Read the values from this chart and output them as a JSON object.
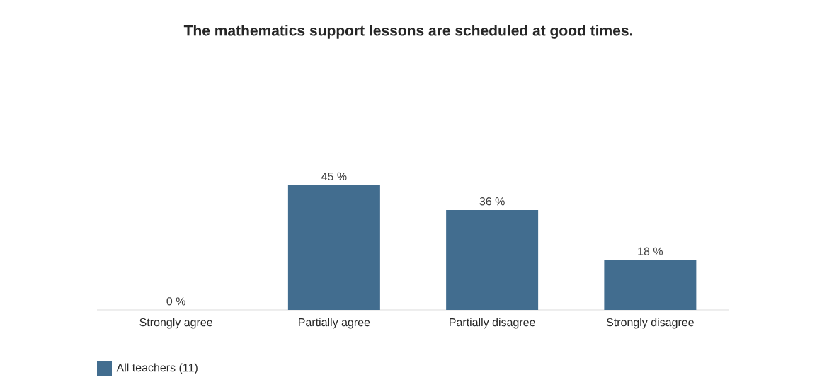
{
  "chart_data": {
    "type": "bar",
    "title": "The mathematics support lessons are scheduled at good times.",
    "categories": [
      "Strongly agree",
      "Partially agree",
      "Partially disagree",
      "Strongly disagree"
    ],
    "series": [
      {
        "name": "All teachers (11)",
        "color": "#426d8f",
        "values": [
          0,
          45,
          36,
          18
        ],
        "value_labels": [
          "0 %",
          "45 %",
          "36 %",
          "18 %"
        ]
      }
    ],
    "legend": "bottom left"
  }
}
